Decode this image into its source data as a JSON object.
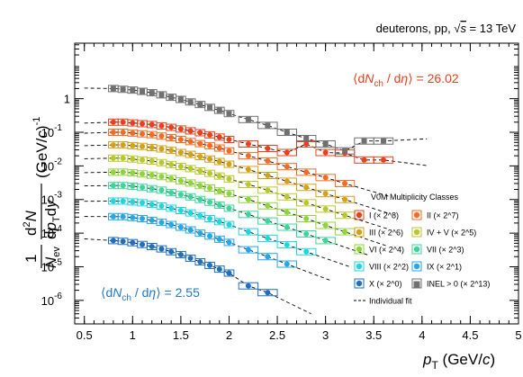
{
  "chart_data": {
    "type": "scatter",
    "header": "deuterons, pp, √s = 13 TeV",
    "xlabel": "p_T (GeV/c)",
    "ylabel": "1/N_ev d²N/(dp_T dy) (GeV/c)^-1",
    "xlim": [
      0.4,
      5.0
    ],
    "ylim_log10": [
      -6.7,
      1.65
    ],
    "x_ticks": [
      "0.5",
      "1",
      "1.5",
      "2",
      "2.5",
      "3",
      "3.5",
      "4",
      "4.5",
      "5"
    ],
    "y_ticks": [
      "1",
      "10^-1",
      "10^-2",
      "10^-3",
      "10^-4",
      "10^-5",
      "10^-6"
    ],
    "annotation_high": "⟨dN_ch / dη⟩ = 26.02",
    "annotation_low": "⟨dN_ch / dη⟩ = 2.55",
    "legend_title": "V0M Multiplicity Classes",
    "legend_fit_label": "Individual fit",
    "colors": {
      "annotation_high": "#e8401c",
      "annotation_low": "#1f78c8",
      "fit": "#000000"
    },
    "series": [
      {
        "name": "I (× 2^8)",
        "color": "#e8401c",
        "marker": "circle",
        "x": [
          0.8,
          0.9,
          1.0,
          1.1,
          1.2,
          1.3,
          1.4,
          1.5,
          1.6,
          1.7,
          1.8,
          1.9,
          2.0,
          2.2,
          2.4,
          2.6,
          2.8,
          3.0,
          3.2,
          3.4,
          3.6
        ],
        "y": [
          0.2,
          0.2,
          0.19,
          0.18,
          0.17,
          0.155,
          0.14,
          0.125,
          0.11,
          0.097,
          0.084,
          0.072,
          0.061,
          0.045,
          0.033,
          0.025,
          0.045,
          0.025,
          0.024,
          0.015,
          0.015
        ]
      },
      {
        "name": "II (× 2^7)",
        "color": "#f26b21",
        "marker": "circle",
        "x": [
          0.8,
          0.9,
          1.0,
          1.1,
          1.2,
          1.3,
          1.4,
          1.5,
          1.6,
          1.7,
          1.8,
          1.9,
          2.0,
          2.2,
          2.4,
          2.6,
          2.8,
          3.0,
          3.2
        ],
        "y": [
          0.1,
          0.1,
          0.095,
          0.09,
          0.085,
          0.077,
          0.069,
          0.061,
          0.053,
          0.046,
          0.04,
          0.034,
          0.028,
          0.02,
          0.014,
          0.0095,
          0.0065,
          0.0045,
          0.003
        ]
      },
      {
        "name": "III (× 2^6)",
        "color": "#d4a017",
        "marker": "circle",
        "x": [
          0.8,
          0.9,
          1.0,
          1.1,
          1.2,
          1.3,
          1.4,
          1.5,
          1.6,
          1.7,
          1.8,
          1.9,
          2.0,
          2.2,
          2.4,
          2.6,
          2.8,
          3.0,
          3.2
        ],
        "y": [
          0.042,
          0.042,
          0.04,
          0.038,
          0.035,
          0.032,
          0.029,
          0.025,
          0.022,
          0.019,
          0.016,
          0.0135,
          0.0112,
          0.0078,
          0.0052,
          0.0035,
          0.0023,
          0.0015,
          0.001
        ]
      },
      {
        "name": "IV + V (× 2^5)",
        "color": "#b8c82a",
        "marker": "circle",
        "x": [
          0.8,
          0.9,
          1.0,
          1.1,
          1.2,
          1.3,
          1.4,
          1.5,
          1.6,
          1.7,
          1.8,
          1.9,
          2.0,
          2.2,
          2.4,
          2.6,
          2.8,
          3.0,
          3.2
        ],
        "y": [
          0.017,
          0.017,
          0.016,
          0.015,
          0.014,
          0.0125,
          0.011,
          0.0096,
          0.0083,
          0.0071,
          0.006,
          0.005,
          0.0041,
          0.0028,
          0.0019,
          0.0012,
          0.0008,
          0.00052,
          0.00034
        ]
      },
      {
        "name": "VI (× 2^4)",
        "color": "#8fd43a",
        "marker": "circle",
        "x": [
          0.8,
          0.9,
          1.0,
          1.1,
          1.2,
          1.3,
          1.4,
          1.5,
          1.6,
          1.7,
          1.8,
          1.9,
          2.0,
          2.2,
          2.4,
          2.6,
          2.8,
          3.0,
          3.2
        ],
        "y": [
          0.0065,
          0.0065,
          0.0062,
          0.0058,
          0.0053,
          0.0048,
          0.0042,
          0.0036,
          0.0031,
          0.0026,
          0.0022,
          0.0018,
          0.0015,
          0.001,
          0.00065,
          0.00042,
          0.00027,
          0.00017,
          0.00011
        ]
      },
      {
        "name": "VII (× 2^3)",
        "color": "#3dd49a",
        "marker": "circle",
        "x": [
          0.8,
          0.9,
          1.0,
          1.1,
          1.2,
          1.3,
          1.4,
          1.5,
          1.6,
          1.7,
          1.8,
          1.9,
          2.0,
          2.2,
          2.4,
          2.6,
          2.8,
          3.0
        ],
        "y": [
          0.0026,
          0.0026,
          0.0025,
          0.0023,
          0.0021,
          0.0019,
          0.0016,
          0.0014,
          0.0012,
          0.001,
          0.00083,
          0.00068,
          0.00055,
          0.00036,
          0.00023,
          0.00015,
          9.5e-05,
          6e-05
        ]
      },
      {
        "name": "VIII (× 2^2)",
        "color": "#22d4e0",
        "marker": "circle",
        "x": [
          0.8,
          0.9,
          1.0,
          1.1,
          1.2,
          1.3,
          1.4,
          1.5,
          1.6,
          1.7,
          1.8,
          1.9,
          2.0,
          2.2,
          2.4,
          2.6,
          2.8
        ],
        "y": [
          0.0009,
          0.0009,
          0.00085,
          0.0008,
          0.00072,
          0.00064,
          0.00055,
          0.00047,
          0.0004,
          0.00033,
          0.00027,
          0.00022,
          0.00018,
          0.00011,
          7e-05,
          4.5e-05,
          2.8e-05
        ]
      },
      {
        "name": "IX (× 2^1)",
        "color": "#25a6e8",
        "marker": "circle",
        "x": [
          0.8,
          0.9,
          1.0,
          1.1,
          1.2,
          1.3,
          1.4,
          1.5,
          1.6,
          1.7,
          1.8,
          1.9,
          2.0,
          2.2,
          2.4,
          2.6
        ],
        "y": [
          0.00031,
          0.00031,
          0.00029,
          0.00027,
          0.00024,
          0.00021,
          0.00018,
          0.00015,
          0.000125,
          0.0001,
          8.2e-05,
          6.6e-05,
          5.3e-05,
          3.2e-05,
          2e-05,
          1.2e-05
        ]
      },
      {
        "name": "X (× 2^0)",
        "color": "#1f6fc0",
        "marker": "circle",
        "x": [
          0.8,
          0.9,
          1.0,
          1.1,
          1.2,
          1.3,
          1.4,
          1.5,
          1.6,
          1.7,
          1.8,
          1.9,
          2.0,
          2.2,
          2.4
        ],
        "y": [
          6e-05,
          5.7e-05,
          5.2e-05,
          4.6e-05,
          4e-05,
          3.4e-05,
          2.8e-05,
          2.3e-05,
          1.8e-05,
          1.4e-05,
          1.1e-05,
          8.5e-06,
          6.5e-06,
          2.7e-06,
          1.7e-06
        ]
      },
      {
        "name": "INEL > 0 (× 2^13)",
        "color": "#707070",
        "marker": "square",
        "x": [
          0.8,
          0.9,
          1.0,
          1.1,
          1.2,
          1.3,
          1.4,
          1.5,
          1.6,
          1.7,
          1.8,
          1.9,
          2.0,
          2.2,
          2.4,
          2.6,
          2.8,
          3.0,
          3.2,
          3.4,
          3.6
        ],
        "y": [
          2.0,
          1.9,
          1.8,
          1.65,
          1.5,
          1.3,
          1.1,
          0.95,
          0.8,
          0.67,
          0.55,
          0.45,
          0.36,
          0.24,
          0.16,
          0.1,
          0.065,
          0.045,
          0.028,
          0.055,
          0.055
        ]
      }
    ]
  }
}
